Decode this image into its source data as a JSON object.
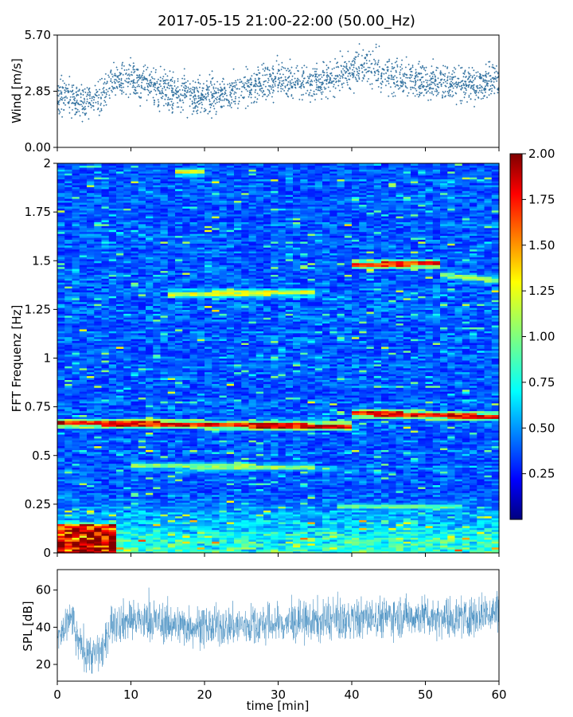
{
  "chart_data": [
    {
      "type": "scatter",
      "name": "wind-panel",
      "title": "2017-05-15 21:00-22:00 (50.00_Hz)",
      "ylabel": "Wind [m/s]",
      "xlim": [
        0,
        60
      ],
      "ylim": [
        0,
        5.7
      ],
      "yticks": [
        "0.00",
        "2.85",
        "5.70"
      ],
      "color": "#2e6f9e",
      "trend": [
        {
          "x": 0,
          "y": 2.7
        },
        {
          "x": 3,
          "y": 2.3
        },
        {
          "x": 6,
          "y": 2.5
        },
        {
          "x": 7,
          "y": 3.3
        },
        {
          "x": 10,
          "y": 3.4
        },
        {
          "x": 14,
          "y": 3.0
        },
        {
          "x": 18,
          "y": 2.6
        },
        {
          "x": 22,
          "y": 2.7
        },
        {
          "x": 26,
          "y": 3.0
        },
        {
          "x": 30,
          "y": 3.4
        },
        {
          "x": 35,
          "y": 3.3
        },
        {
          "x": 38,
          "y": 3.6
        },
        {
          "x": 42,
          "y": 4.1
        },
        {
          "x": 46,
          "y": 3.6
        },
        {
          "x": 50,
          "y": 3.4
        },
        {
          "x": 54,
          "y": 3.3
        },
        {
          "x": 57,
          "y": 3.2
        },
        {
          "x": 60,
          "y": 3.4
        }
      ],
      "spread": 0.45
    },
    {
      "type": "heatmap",
      "name": "fft-spectrogram",
      "ylabel": "FFT Frequenz [Hz]",
      "xlim": [
        0,
        60
      ],
      "ylim": [
        0,
        2
      ],
      "yticks": [
        "0",
        "0.25",
        "0.5",
        "0.75",
        "1",
        "1.25",
        "1.5",
        "1.75",
        "2"
      ],
      "colorbar": {
        "min": 0,
        "max": 2,
        "ticks": [
          "0.25",
          "0.50",
          "0.75",
          "1.00",
          "1.25",
          "1.50",
          "1.75",
          "2.00"
        ],
        "colormap": "jet"
      },
      "bands": [
        {
          "x_from": 0,
          "x_to": 40,
          "f_from": 0.67,
          "f_to": 0.65,
          "intensity": 1.9
        },
        {
          "x_from": 40,
          "x_to": 60,
          "f_from": 0.72,
          "f_to": 0.7,
          "intensity": 1.85
        },
        {
          "x_from": 10,
          "x_to": 35,
          "f_from": 0.45,
          "f_to": 0.44,
          "intensity": 1.1
        },
        {
          "x_from": 40,
          "x_to": 52,
          "f_from": 1.48,
          "f_to": 1.49,
          "intensity": 1.8
        },
        {
          "x_from": 52,
          "x_to": 60,
          "f_from": 1.43,
          "f_to": 1.4,
          "intensity": 1.1
        },
        {
          "x_from": 15,
          "x_to": 35,
          "f_from": 1.33,
          "f_to": 1.34,
          "intensity": 1.25
        },
        {
          "x_from": 38,
          "x_to": 55,
          "f_from": 0.24,
          "f_to": 0.24,
          "intensity": 1.0
        },
        {
          "x_from": 0,
          "x_to": 8,
          "f_from": 0.05,
          "f_to": 0.05,
          "intensity": 1.9
        },
        {
          "x_from": 16,
          "x_to": 20,
          "f_from": 1.96,
          "f_to": 1.96,
          "intensity": 1.3
        }
      ]
    },
    {
      "type": "area",
      "name": "spl-panel",
      "ylabel": "SPL [dB]",
      "xlabel": "time [min]",
      "xlim": [
        0,
        60
      ],
      "ylim": [
        11,
        71
      ],
      "yticks": [
        20,
        40,
        60
      ],
      "xticks": [
        0,
        10,
        20,
        30,
        40,
        50,
        60
      ],
      "color": "#1f77b4",
      "center": [
        {
          "x": 0,
          "y": 34
        },
        {
          "x": 1,
          "y": 38
        },
        {
          "x": 2,
          "y": 46
        },
        {
          "x": 2.6,
          "y": 33
        },
        {
          "x": 3.5,
          "y": 28
        },
        {
          "x": 5,
          "y": 25
        },
        {
          "x": 6.5,
          "y": 29
        },
        {
          "x": 7.2,
          "y": 42
        },
        {
          "x": 10,
          "y": 44
        },
        {
          "x": 15,
          "y": 42
        },
        {
          "x": 20,
          "y": 40
        },
        {
          "x": 25,
          "y": 41
        },
        {
          "x": 30,
          "y": 42
        },
        {
          "x": 35,
          "y": 43
        },
        {
          "x": 40,
          "y": 44
        },
        {
          "x": 45,
          "y": 46
        },
        {
          "x": 50,
          "y": 46
        },
        {
          "x": 55,
          "y": 45
        },
        {
          "x": 60,
          "y": 49
        }
      ],
      "halfwidth": 6
    }
  ]
}
